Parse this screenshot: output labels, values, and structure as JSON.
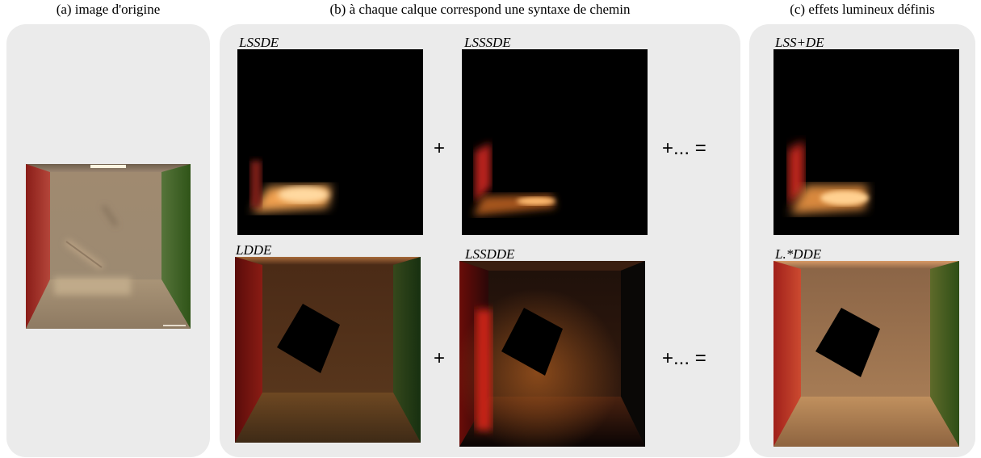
{
  "captions": {
    "a": "(a) image d'origine",
    "b": "(b) à chaque calque correspond une syntaxe de chemin",
    "c": "(c) effets lumineux définis"
  },
  "layers": {
    "lssde": "LSSDE",
    "lsssde": "LSSSDE",
    "lsspde": "LSS+DE",
    "ldde": "LDDE",
    "lssdde": "LSSDDE",
    "lstardde": "L.*DDE"
  },
  "operators": {
    "plus": "+",
    "plus_ellipsis_equals": "+... ="
  },
  "colors": {
    "panel_bg": "#ebebeb",
    "left_wall": "#a8231c",
    "right_wall": "#3f6a1e",
    "caustic": "#f0a050"
  }
}
